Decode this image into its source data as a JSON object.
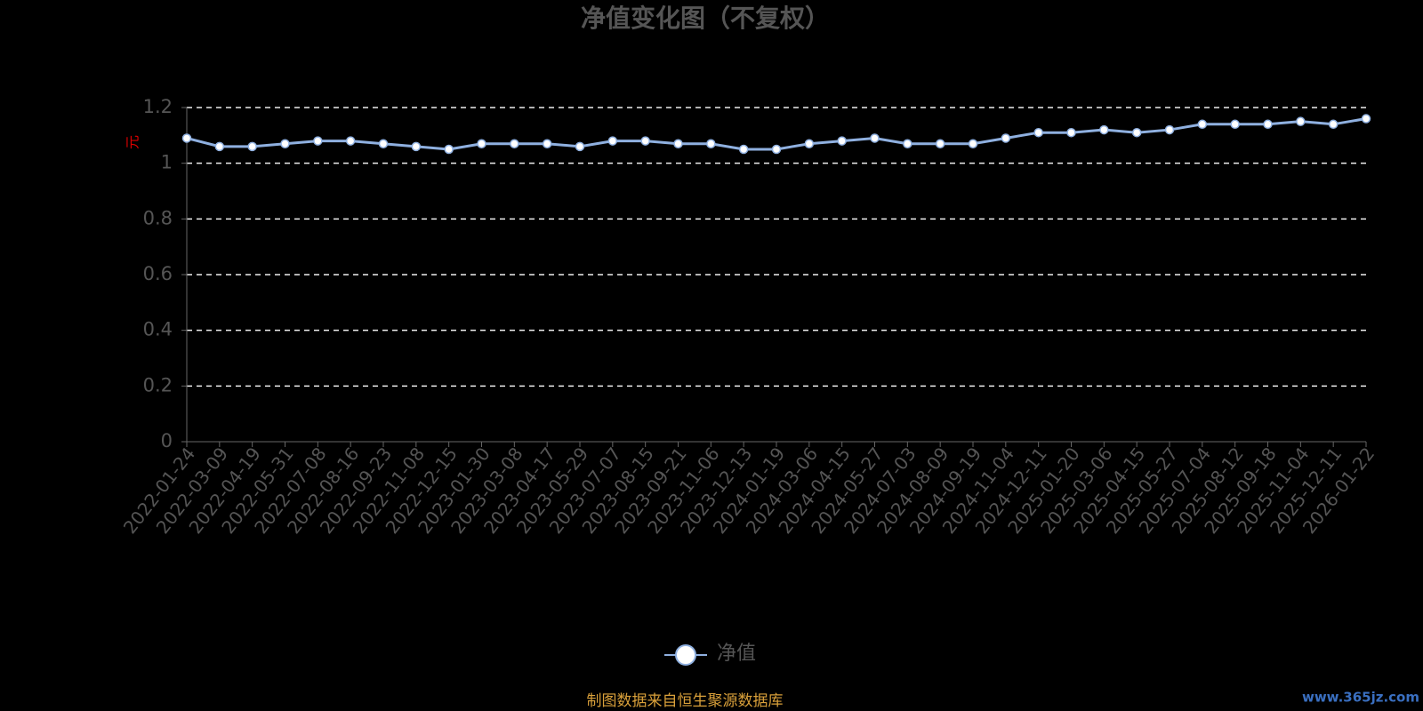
{
  "chart_data": {
    "type": "line",
    "title": "净值变化图（不复权）",
    "y_label": "元",
    "categories": [
      "2022-01-24",
      "2022-03-09",
      "2022-04-19",
      "2022-05-31",
      "2022-07-08",
      "2022-08-16",
      "2022-09-23",
      "2022-11-08",
      "2022-12-15",
      "2023-01-30",
      "2023-03-08",
      "2023-04-17",
      "2023-05-29",
      "2023-07-07",
      "2023-08-15",
      "2023-09-21",
      "2023-11-06",
      "2023-12-13",
      "2024-01-19",
      "2024-03-06",
      "2024-04-15",
      "2024-05-27",
      "2024-07-03",
      "2024-08-09",
      "2024-09-19",
      "2024-11-04",
      "2024-12-11",
      "2025-01-20",
      "2025-03-06",
      "2025-04-15",
      "2025-05-27",
      "2025-07-04",
      "2025-08-12",
      "2025-09-18",
      "2025-11-04",
      "2025-12-11",
      "2026-01-22"
    ],
    "series": [
      {
        "name": "净值",
        "color": "#8fb0e0",
        "values": [
          1.09,
          1.06,
          1.06,
          1.07,
          1.08,
          1.08,
          1.07,
          1.06,
          1.05,
          1.07,
          1.07,
          1.07,
          1.06,
          1.08,
          1.08,
          1.07,
          1.07,
          1.05,
          1.05,
          1.07,
          1.08,
          1.09,
          1.07,
          1.07,
          1.07,
          1.09,
          1.11,
          1.11,
          1.12,
          1.11,
          1.12,
          1.14,
          1.14,
          1.14,
          1.15,
          1.14,
          1.16
        ]
      }
    ],
    "ylim": [
      0,
      1.2
    ],
    "yticks": [
      0,
      0.2,
      0.4,
      0.6,
      0.8,
      1,
      1.2
    ],
    "grid": true,
    "legend": "bottom",
    "source": "制图数据来自恒生聚源数据库",
    "watermark": "www.365jz.com"
  }
}
